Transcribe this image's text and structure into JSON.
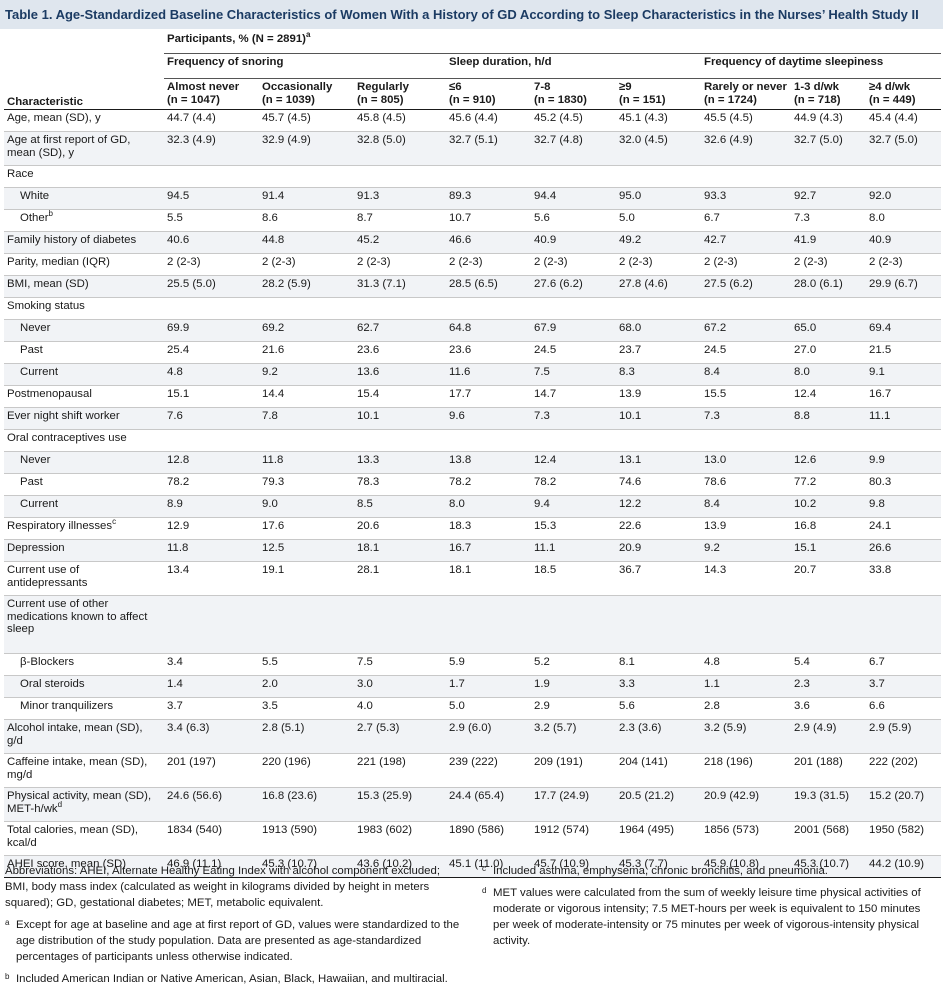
{
  "title": "Table 1. Age-Standardized Baseline Characteristics of Women With a History of GD According to Sleep Characteristics in the Nurses’ Health Study II",
  "header": {
    "participants": "Participants, % (N = 2891)",
    "participants_sup": "a",
    "group_snoring": "Frequency of snoring",
    "group_sleep": "Sleep duration, h/d",
    "group_daytime": "Frequency of daytime sleepiness",
    "characteristic": "Characteristic",
    "columns": [
      {
        "name": "Almost never",
        "n": "(n = 1047)"
      },
      {
        "name": "Occasionally",
        "n": "(n = 1039)"
      },
      {
        "name": "Regularly",
        "n": "(n = 805)"
      },
      {
        "name": "≤6",
        "n": "(n = 910)"
      },
      {
        "name": "7-8",
        "n": "(n = 1830)"
      },
      {
        "name": "≥9",
        "n": "(n = 151)"
      },
      {
        "name": "Rarely or never",
        "n": "(n = 1724)"
      },
      {
        "name": "1-3 d/wk",
        "n": "(n = 718)"
      },
      {
        "name": "≥4 d/wk",
        "n": "(n = 449)"
      }
    ]
  },
  "rows": [
    {
      "label": "Age, mean (SD), y",
      "sup": "",
      "indent": false,
      "lines": 1,
      "values": [
        "44.7 (4.4)",
        "45.7 (4.5)",
        "45.8 (4.5)",
        "45.6 (4.4)",
        "45.2 (4.5)",
        "45.1 (4.3)",
        "45.5 (4.5)",
        "44.9 (4.3)",
        "45.4 (4.4)"
      ]
    },
    {
      "label": "Age at first report of GD, mean (SD), y",
      "sup": "",
      "indent": false,
      "lines": 2,
      "values": [
        "32.3 (4.9)",
        "32.9 (4.9)",
        "32.8 (5.0)",
        "32.7 (5.1)",
        "32.7 (4.8)",
        "32.0 (4.5)",
        "32.6 (4.9)",
        "32.7 (5.0)",
        "32.7 (5.0)"
      ]
    },
    {
      "label": "Race",
      "sup": "",
      "indent": false,
      "lines": 1,
      "values": [
        "",
        "",
        "",
        "",
        "",
        "",
        "",
        "",
        ""
      ]
    },
    {
      "label": "White",
      "sup": "",
      "indent": true,
      "lines": 1,
      "values": [
        "94.5",
        "91.4",
        "91.3",
        "89.3",
        "94.4",
        "95.0",
        "93.3",
        "92.7",
        "92.0"
      ]
    },
    {
      "label": "Other",
      "sup": "b",
      "indent": true,
      "lines": 1,
      "values": [
        "5.5",
        "8.6",
        "8.7",
        "10.7",
        "5.6",
        "5.0",
        "6.7",
        "7.3",
        "8.0"
      ]
    },
    {
      "label": "Family history of diabetes",
      "sup": "",
      "indent": false,
      "lines": 1,
      "values": [
        "40.6",
        "44.8",
        "45.2",
        "46.6",
        "40.9",
        "49.2",
        "42.7",
        "41.9",
        "40.9"
      ]
    },
    {
      "label": "Parity, median (IQR)",
      "sup": "",
      "indent": false,
      "lines": 1,
      "values": [
        "2 (2-3)",
        "2 (2-3)",
        "2 (2-3)",
        "2 (2-3)",
        "2 (2-3)",
        "2 (2-3)",
        "2 (2-3)",
        "2 (2-3)",
        "2 (2-3)"
      ]
    },
    {
      "label": "BMI, mean (SD)",
      "sup": "",
      "indent": false,
      "lines": 1,
      "values": [
        "25.5 (5.0)",
        "28.2 (5.9)",
        "31.3 (7.1)",
        "28.5 (6.5)",
        "27.6 (6.2)",
        "27.8 (4.6)",
        "27.5 (6.2)",
        "28.0 (6.1)",
        "29.9 (6.7)"
      ]
    },
    {
      "label": "Smoking status",
      "sup": "",
      "indent": false,
      "lines": 1,
      "values": [
        "",
        "",
        "",
        "",
        "",
        "",
        "",
        "",
        ""
      ]
    },
    {
      "label": "Never",
      "sup": "",
      "indent": true,
      "lines": 1,
      "values": [
        "69.9",
        "69.2",
        "62.7",
        "64.8",
        "67.9",
        "68.0",
        "67.2",
        "65.0",
        "69.4"
      ]
    },
    {
      "label": "Past",
      "sup": "",
      "indent": true,
      "lines": 1,
      "values": [
        "25.4",
        "21.6",
        "23.6",
        "23.6",
        "24.5",
        "23.7",
        "24.5",
        "27.0",
        "21.5"
      ]
    },
    {
      "label": "Current",
      "sup": "",
      "indent": true,
      "lines": 1,
      "values": [
        "4.8",
        "9.2",
        "13.6",
        "11.6",
        "7.5",
        "8.3",
        "8.4",
        "8.0",
        "9.1"
      ]
    },
    {
      "label": "Postmenopausal",
      "sup": "",
      "indent": false,
      "lines": 1,
      "values": [
        "15.1",
        "14.4",
        "15.4",
        "17.7",
        "14.7",
        "13.9",
        "15.5",
        "12.4",
        "16.7"
      ]
    },
    {
      "label": "Ever night shift worker",
      "sup": "",
      "indent": false,
      "lines": 1,
      "values": [
        "7.6",
        "7.8",
        "10.1",
        "9.6",
        "7.3",
        "10.1",
        "7.3",
        "8.8",
        "11.1"
      ]
    },
    {
      "label": "Oral contraceptives use",
      "sup": "",
      "indent": false,
      "lines": 1,
      "values": [
        "",
        "",
        "",
        "",
        "",
        "",
        "",
        "",
        ""
      ]
    },
    {
      "label": "Never",
      "sup": "",
      "indent": true,
      "lines": 1,
      "values": [
        "12.8",
        "11.8",
        "13.3",
        "13.8",
        "12.4",
        "13.1",
        "13.0",
        "12.6",
        "9.9"
      ]
    },
    {
      "label": "Past",
      "sup": "",
      "indent": true,
      "lines": 1,
      "values": [
        "78.2",
        "79.3",
        "78.3",
        "78.2",
        "78.2",
        "74.6",
        "78.6",
        "77.2",
        "80.3"
      ]
    },
    {
      "label": "Current",
      "sup": "",
      "indent": true,
      "lines": 1,
      "values": [
        "8.9",
        "9.0",
        "8.5",
        "8.0",
        "9.4",
        "12.2",
        "8.4",
        "10.2",
        "9.8"
      ]
    },
    {
      "label": "Respiratory illnesses",
      "sup": "c",
      "indent": false,
      "lines": 1,
      "values": [
        "12.9",
        "17.6",
        "20.6",
        "18.3",
        "15.3",
        "22.6",
        "13.9",
        "16.8",
        "24.1"
      ]
    },
    {
      "label": "Depression",
      "sup": "",
      "indent": false,
      "lines": 1,
      "values": [
        "11.8",
        "12.5",
        "18.1",
        "16.7",
        "11.1",
        "20.9",
        "9.2",
        "15.1",
        "26.6"
      ]
    },
    {
      "label": "Current use of antidepressants",
      "sup": "",
      "indent": false,
      "lines": 2,
      "values": [
        "13.4",
        "19.1",
        "28.1",
        "18.1",
        "18.5",
        "36.7",
        "14.3",
        "20.7",
        "33.8"
      ]
    },
    {
      "label": "Current use of other medications known to affect sleep",
      "sup": "",
      "indent": false,
      "lines": 4,
      "values": [
        "",
        "",
        "",
        "",
        "",
        "",
        "",
        "",
        ""
      ]
    },
    {
      "label": "β-Blockers",
      "sup": "",
      "indent": true,
      "lines": 1,
      "values": [
        "3.4",
        "5.5",
        "7.5",
        "5.9",
        "5.2",
        "8.1",
        "4.8",
        "5.4",
        "6.7"
      ]
    },
    {
      "label": "Oral steroids",
      "sup": "",
      "indent": true,
      "lines": 1,
      "values": [
        "1.4",
        "2.0",
        "3.0",
        "1.7",
        "1.9",
        "3.3",
        "1.1",
        "2.3",
        "3.7"
      ]
    },
    {
      "label": "Minor tranquilizers",
      "sup": "",
      "indent": true,
      "lines": 1,
      "values": [
        "3.7",
        "3.5",
        "4.0",
        "5.0",
        "2.9",
        "5.6",
        "2.8",
        "3.6",
        "6.6"
      ]
    },
    {
      "label": "Alcohol intake, mean (SD), g/d",
      "sup": "",
      "indent": false,
      "lines": 2,
      "values": [
        "3.4 (6.3)",
        "2.8 (5.1)",
        "2.7 (5.3)",
        "2.9 (6.0)",
        "3.2 (5.7)",
        "2.3 (3.6)",
        "3.2 (5.9)",
        "2.9 (4.9)",
        "2.9 (5.9)"
      ]
    },
    {
      "label": "Caffeine intake, mean (SD), mg/d",
      "sup": "",
      "indent": false,
      "lines": 2,
      "values": [
        "201 (197)",
        "220 (196)",
        "221 (198)",
        "239 (222)",
        "209 (191)",
        "204 (141)",
        "218 (196)",
        "201 (188)",
        "222 (202)"
      ]
    },
    {
      "label": "Physical activity, mean (SD), MET-h/wk",
      "sup": "d",
      "indent": false,
      "lines": 2,
      "values": [
        "24.6 (56.6)",
        "16.8 (23.6)",
        "15.3 (25.9)",
        "24.4 (65.4)",
        "17.7 (24.9)",
        "20.5 (21.2)",
        "20.9 (42.9)",
        "19.3 (31.5)",
        "15.2 (20.7)"
      ]
    },
    {
      "label": "Total calories, mean (SD), kcal/d",
      "sup": "",
      "indent": false,
      "lines": 2,
      "values": [
        "1834 (540)",
        "1913 (590)",
        "1983 (602)",
        "1890 (586)",
        "1912 (574)",
        "1964 (495)",
        "1856 (573)",
        "2001 (568)",
        "1950 (582)"
      ]
    },
    {
      "label": "AHEI score, mean (SD)",
      "sup": "",
      "indent": false,
      "lines": 1,
      "values": [
        "46.9 (11.1)",
        "45.3 (10.7)",
        "43.6 (10.2)",
        "45.1 (11.0)",
        "45.7 (10.9)",
        "45.3 (7.7)",
        "45.9 (10.8)",
        "45.3 (10.7)",
        "44.2 (10.9)"
      ]
    }
  ],
  "footnotes": {
    "abbreviations": "Abbreviations: AHEI, Alternate Healthy Eating Index with alcohol component excluded; BMI, body mass index (calculated as weight in kilograms divided by height in meters squared); GD, gestational diabetes; MET, metabolic equivalent.",
    "a": "Except for age at baseline and age at first report of GD, values were standardized to the age distribution of the study population. Data are presented as age-standardized percentages of participants unless otherwise indicated.",
    "b": "Included American Indian or Native American, Asian, Black, Hawaiian, and multiracial.",
    "c": "Included asthma, emphysema, chronic bronchitis, and pneumonia.",
    "d": "MET values were calculated from the sum of weekly leisure time physical activities of moderate or vigorous intensity; 7.5 MET-hours per week is equivalent to 150 minutes per week of moderate-intensity or 75 minutes per week of vigorous-intensity physical activity."
  },
  "footnote_marks": {
    "a": "a",
    "b": "b",
    "c": "c",
    "d": "d"
  },
  "colors": {
    "title_bg": "#dfe6ee",
    "title_text": "#1b3b63",
    "row_shade": "#f1f3f6"
  }
}
